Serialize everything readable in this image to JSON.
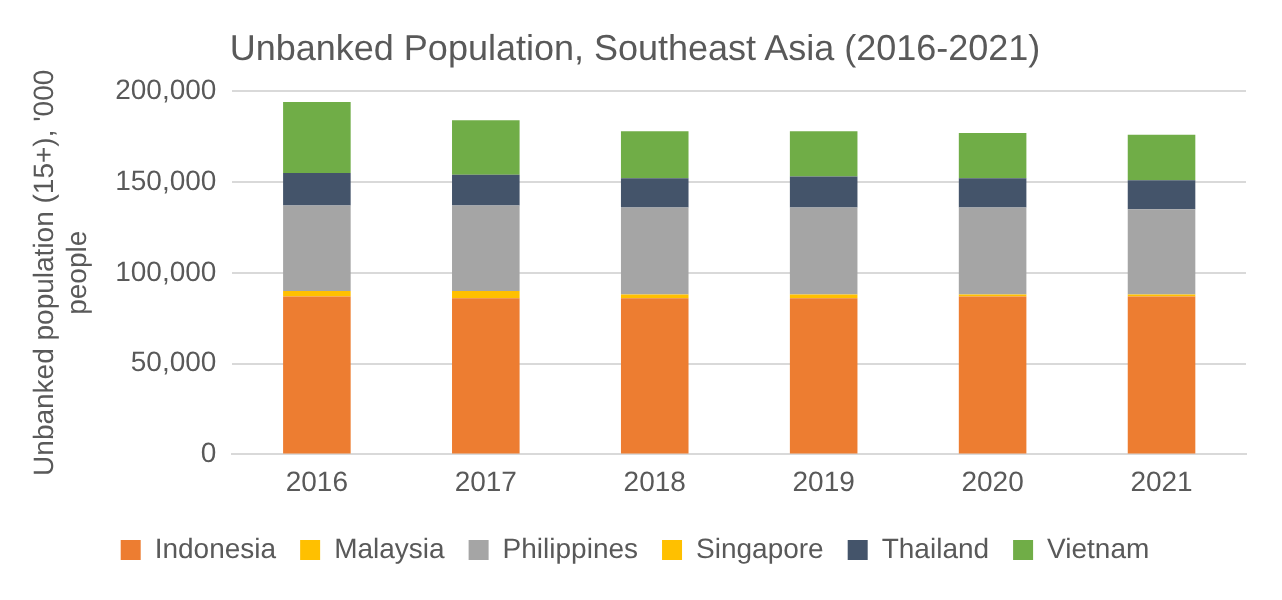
{
  "chart_data": {
    "type": "bar",
    "stacked": true,
    "title": "Unbanked Population, Southeast Asia (2016-2021)",
    "ylabel": "Unbanked population (15+), '000 people",
    "categories": [
      "2016",
      "2017",
      "2018",
      "2019",
      "2020",
      "2021"
    ],
    "series": [
      {
        "name": "Indonesia",
        "color": "#ed7d31",
        "values": [
          87000,
          86000,
          86000,
          86000,
          87000,
          87000
        ]
      },
      {
        "name": "Malaysia",
        "color": "#ffc000",
        "values": [
          3000,
          4000,
          2000,
          2000,
          1000,
          1000
        ]
      },
      {
        "name": "Philippines",
        "color": "#a5a5a5",
        "values": [
          47000,
          47000,
          48000,
          48000,
          48000,
          47000
        ]
      },
      {
        "name": "Singapore",
        "color": "#ffc000",
        "values": [
          0,
          0,
          0,
          0,
          0,
          0
        ]
      },
      {
        "name": "Thailand",
        "color": "#44546a",
        "values": [
          18000,
          17000,
          16000,
          17000,
          16000,
          16000
        ]
      },
      {
        "name": "Vietnam",
        "color": "#70ad47",
        "values": [
          39000,
          30000,
          26000,
          25000,
          25000,
          25000
        ]
      }
    ],
    "ylim": [
      0,
      200000
    ],
    "yticks": [
      0,
      {
        "value": 50000,
        "label": "50,000"
      },
      {
        "value": 100000,
        "label": "100,000"
      },
      {
        "value": 150000,
        "label": "150,000"
      },
      {
        "value": 200000,
        "label": "200,000"
      }
    ],
    "grid": "y",
    "legend": "bottom"
  }
}
